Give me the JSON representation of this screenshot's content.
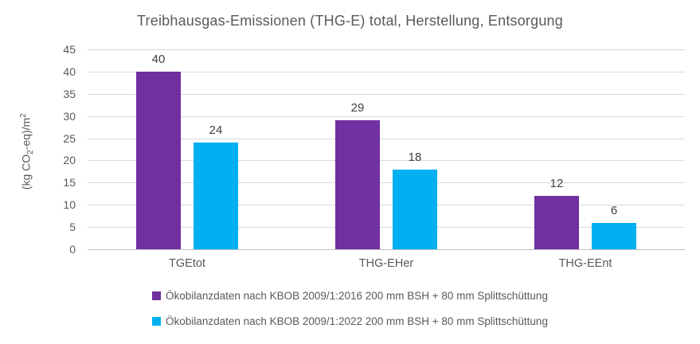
{
  "chart_data": {
    "type": "bar",
    "title": "Treibhausgas-Emissionen (THG-E) total, Herstellung, Entsorgung",
    "categories": [
      "TGEtot",
      "THG-EHer",
      "THG-EEnt"
    ],
    "series": [
      {
        "name": "Ökobilanzdaten nach KBOB 2009/1:2016 200 mm BSH + 80 mm Splittschüttung",
        "color": "#7030A0",
        "values": [
          40,
          29,
          12
        ]
      },
      {
        "name": "Ökobilanzdaten nach KBOB 2009/1:2022 200 mm BSH + 80 mm Splittschüttung",
        "color": "#00B0F0",
        "values": [
          24,
          18,
          6
        ]
      }
    ],
    "ylabel": "(kg CO2-eq)/m2",
    "ylabel_parts": {
      "pre": "(kg CO",
      "sub": "2",
      "mid": "-eq)/m",
      "sup": "2"
    },
    "ylim": [
      0,
      45
    ],
    "ytick_step": 5,
    "yticks": [
      0,
      5,
      10,
      15,
      20,
      25,
      30,
      35,
      40,
      45
    ],
    "grid": true,
    "legend_position": "bottom"
  },
  "colors": {
    "title_text": "#595959",
    "axis_text": "#595959",
    "data_label_text": "#404040",
    "gridline": "#D9D9D9",
    "axis_line": "#BFBFBF",
    "background": "#FFFFFF"
  }
}
